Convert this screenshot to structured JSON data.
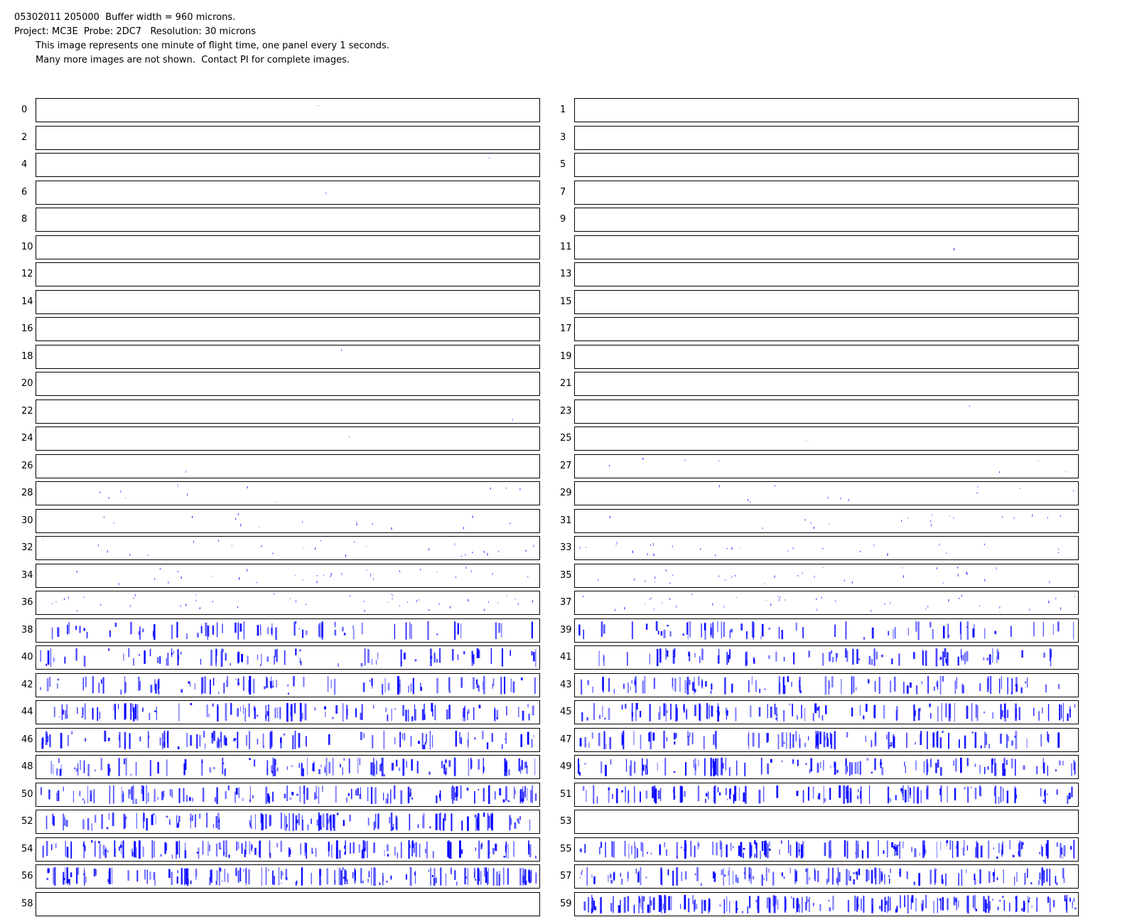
{
  "header": {
    "line1": "05302011 205000  Buffer width = 960 microns.",
    "line2": "Project: MC3E  Probe: 2DC7   Resolution: 30 microns",
    "line3": "This image represents one minute of flight time, one panel every 1 seconds.",
    "line4": "Many more images are not shown.  Contact PI for complete images."
  },
  "image_color": "#0000ff",
  "panels": [
    {
      "label": "0",
      "activity": 0.002
    },
    {
      "label": "1",
      "activity": 0.0
    },
    {
      "label": "2",
      "activity": 0.0
    },
    {
      "label": "3",
      "activity": 0.0
    },
    {
      "label": "4",
      "activity": 0.002
    },
    {
      "label": "5",
      "activity": 0.0
    },
    {
      "label": "6",
      "activity": 0.002
    },
    {
      "label": "7",
      "activity": 0.0
    },
    {
      "label": "8",
      "activity": 0.0
    },
    {
      "label": "9",
      "activity": 0.0
    },
    {
      "label": "10",
      "activity": 0.0
    },
    {
      "label": "11",
      "activity": 0.004
    },
    {
      "label": "12",
      "activity": 0.0
    },
    {
      "label": "13",
      "activity": 0.0
    },
    {
      "label": "14",
      "activity": 0.0
    },
    {
      "label": "15",
      "activity": 0.0
    },
    {
      "label": "16",
      "activity": 0.0
    },
    {
      "label": "17",
      "activity": 0.0
    },
    {
      "label": "18",
      "activity": 0.004
    },
    {
      "label": "19",
      "activity": 0.0
    },
    {
      "label": "20",
      "activity": 0.0
    },
    {
      "label": "21",
      "activity": 0.0
    },
    {
      "label": "22",
      "activity": 0.002
    },
    {
      "label": "23",
      "activity": 0.004
    },
    {
      "label": "24",
      "activity": 0.004
    },
    {
      "label": "25",
      "activity": 0.004
    },
    {
      "label": "26",
      "activity": 0.004
    },
    {
      "label": "27",
      "activity": 0.03
    },
    {
      "label": "28",
      "activity": 0.05
    },
    {
      "label": "29",
      "activity": 0.05
    },
    {
      "label": "30",
      "activity": 0.07
    },
    {
      "label": "31",
      "activity": 0.08
    },
    {
      "label": "32",
      "activity": 0.12
    },
    {
      "label": "33",
      "activity": 0.12
    },
    {
      "label": "34",
      "activity": 0.14
    },
    {
      "label": "35",
      "activity": 0.14
    },
    {
      "label": "36",
      "activity": 0.2
    },
    {
      "label": "37",
      "activity": 0.18
    },
    {
      "label": "38",
      "activity": 0.3
    },
    {
      "label": "39",
      "activity": 0.32
    },
    {
      "label": "40",
      "activity": 0.38
    },
    {
      "label": "41",
      "activity": 0.36
    },
    {
      "label": "42",
      "activity": 0.42
    },
    {
      "label": "43",
      "activity": 0.44
    },
    {
      "label": "44",
      "activity": 0.5
    },
    {
      "label": "45",
      "activity": 0.48
    },
    {
      "label": "46",
      "activity": 0.44
    },
    {
      "label": "47",
      "activity": 0.46
    },
    {
      "label": "48",
      "activity": 0.52
    },
    {
      "label": "49",
      "activity": 0.5
    },
    {
      "label": "50",
      "activity": 0.56
    },
    {
      "label": "51",
      "activity": 0.54
    },
    {
      "label": "52",
      "activity": 0.58
    },
    {
      "label": "53",
      "activity": 0.0
    },
    {
      "label": "54",
      "activity": 0.62
    },
    {
      "label": "55",
      "activity": 0.64
    },
    {
      "label": "56",
      "activity": 0.7
    },
    {
      "label": "57",
      "activity": 0.6
    },
    {
      "label": "58",
      "activity": 0.0
    },
    {
      "label": "59",
      "activity": 0.75
    }
  ]
}
